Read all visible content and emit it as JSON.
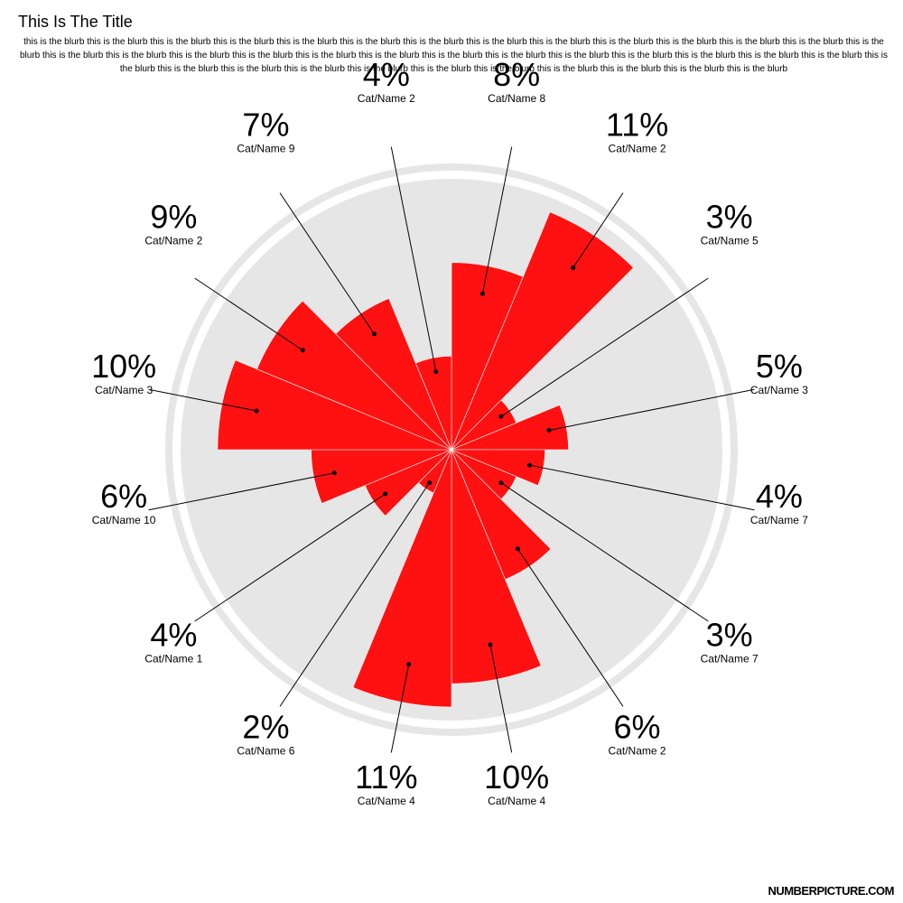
{
  "header": {
    "title": "This Is The Title",
    "blurb": "this is the blurb this is the blurb this is the blurb this is the blurb this is the blurb this is the blurb this is the blurb this is the blurb this is the blurb this is the blurb this is the blurb this is the blurb this is the blurb this is the blurb this is the blurb this is the blurb this is the blurb this is the blurb this is the blurb this is the blurb this is the blurb this is the blurb this is the blurb this is the blurb this is the blurb this is the blurb this is the blurb this is the blurb this is the blurb this is the blurb this is the blurb this is the blurb this is the blurb this is the blurb this is the blurb this is the blurb this is the blurb this is the blurb"
  },
  "footer": {
    "brand": "NUMBERPICTURE.COM"
  },
  "colors": {
    "wedge": "#ff1111",
    "ring": "#e6e6e6",
    "background": "#ffffff"
  },
  "chart_data": {
    "type": "polar-area",
    "categories": [
      "Cat/Name 8",
      "Cat/Name 2",
      "Cat/Name 5",
      "Cat/Name 3",
      "Cat/Name 7",
      "Cat/Name 7",
      "Cat/Name 2",
      "Cat/Name 4",
      "Cat/Name 4",
      "Cat/Name 6",
      "Cat/Name 1",
      "Cat/Name 10",
      "Cat/Name 3",
      "Cat/Name 2",
      "Cat/Name 9",
      "Cat/Name 2"
    ],
    "labels": [
      "8%",
      "11%",
      "3%",
      "5%",
      "4%",
      "3%",
      "6%",
      "10%",
      "11%",
      "2%",
      "4%",
      "6%",
      "10%",
      "9%",
      "7%",
      "4%"
    ],
    "values": [
      8,
      11,
      3,
      5,
      4,
      3,
      6,
      10,
      11,
      2,
      4,
      6,
      10,
      9,
      7,
      4
    ],
    "max": 11
  }
}
